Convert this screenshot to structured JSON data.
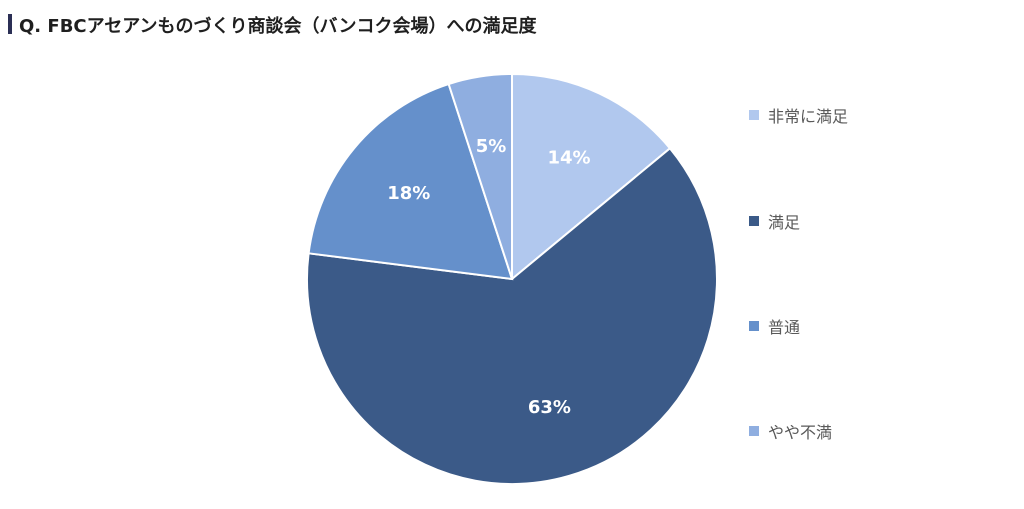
{
  "title": "Q. FBCアセアンものづくり商談会（バンコク会場）への満足度",
  "chart_data": {
    "type": "pie",
    "categories": [
      "非常に満足",
      "満足",
      "普通",
      "やや不満"
    ],
    "values": [
      14,
      63,
      18,
      5
    ],
    "value_labels": [
      "14%",
      "63%",
      "18%",
      "5%"
    ],
    "colors": [
      "#b1c8ee",
      "#3b5a88",
      "#6590cb",
      "#8faee0"
    ],
    "legend_position": "right",
    "start_angle": "12 o'clock",
    "direction": "clockwise"
  }
}
